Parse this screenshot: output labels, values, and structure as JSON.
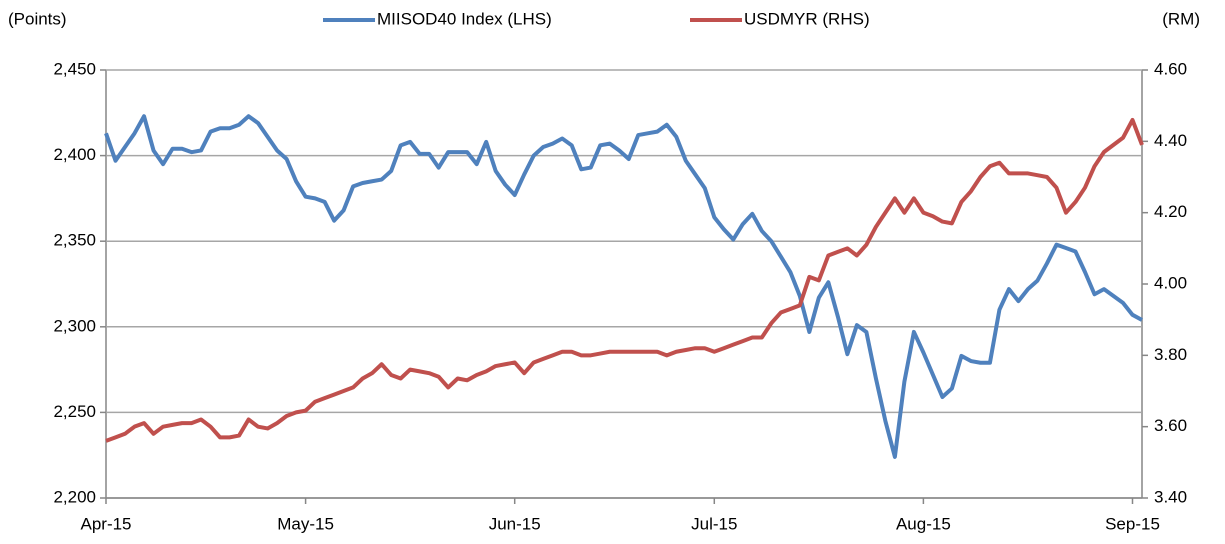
{
  "chart_data": {
    "type": "line",
    "y_label": "(Points)",
    "y2_label": "(RM)",
    "categories": [
      "Apr-15",
      null,
      null,
      null,
      null,
      null,
      null,
      null,
      null,
      null,
      null,
      null,
      null,
      null,
      null,
      null,
      null,
      null,
      null,
      null,
      null,
      "May-15",
      null,
      null,
      null,
      null,
      null,
      null,
      null,
      null,
      null,
      null,
      null,
      null,
      null,
      null,
      null,
      null,
      null,
      null,
      null,
      null,
      null,
      "Jun-15",
      null,
      null,
      null,
      null,
      null,
      null,
      null,
      null,
      null,
      null,
      null,
      null,
      null,
      null,
      null,
      null,
      null,
      null,
      null,
      null,
      "Jul-15",
      null,
      null,
      null,
      null,
      null,
      null,
      null,
      null,
      null,
      null,
      null,
      null,
      null,
      null,
      null,
      null,
      null,
      null,
      null,
      null,
      null,
      "Aug-15",
      null,
      null,
      null,
      null,
      null,
      null,
      null,
      null,
      null,
      null,
      null,
      null,
      null,
      null,
      null,
      null,
      null,
      null,
      null,
      null,
      null,
      "Sep-15",
      null
    ],
    "series": [
      {
        "name": "MIISOD40 Index (LHS)",
        "color": "#4f81bd",
        "axis": "y",
        "values": [
          2413,
          2397,
          2405,
          2413,
          2423,
          2403,
          2395,
          2404,
          2404,
          2402,
          2403,
          2414,
          2416,
          2416,
          2418,
          2423,
          2419,
          2411,
          2403,
          2398,
          2385,
          2376,
          2375,
          2373,
          2362,
          2368,
          2382,
          2384,
          2385,
          2386,
          2391,
          2406,
          2408,
          2401,
          2401,
          2393,
          2402,
          2402,
          2402,
          2395,
          2408,
          2391,
          2383,
          2377,
          2389,
          2400,
          2405,
          2407,
          2410,
          2406,
          2392,
          2393,
          2406,
          2407,
          2403,
          2398,
          2412,
          2413,
          2414,
          2418,
          2411,
          2397,
          2389,
          2381,
          2364,
          2357,
          2351,
          2360,
          2366,
          2356,
          2350,
          2341,
          2332,
          2318,
          2297,
          2317,
          2326,
          2306,
          2284,
          2301,
          2297,
          2270,
          2245,
          2224,
          2268,
          2297,
          2285,
          2272,
          2259,
          2264,
          2283,
          2280,
          2279,
          2279,
          2310,
          2322,
          2315,
          2322,
          2327,
          2337,
          2348,
          2346,
          2344,
          2332,
          2319,
          2322,
          2318,
          2314,
          2307,
          2304
        ]
      },
      {
        "name": "USDMYR (RHS)",
        "color": "#c0504d",
        "axis": "y2",
        "values": [
          3.56,
          3.57,
          3.58,
          3.6,
          3.61,
          3.58,
          3.6,
          3.605,
          3.61,
          3.61,
          3.62,
          3.6,
          3.57,
          3.57,
          3.575,
          3.62,
          3.6,
          3.595,
          3.61,
          3.63,
          3.64,
          3.645,
          3.67,
          3.68,
          3.69,
          3.7,
          3.71,
          3.735,
          3.75,
          3.775,
          3.745,
          3.735,
          3.76,
          3.755,
          3.75,
          3.74,
          3.71,
          3.735,
          3.73,
          3.745,
          3.755,
          3.77,
          3.775,
          3.78,
          3.75,
          3.78,
          3.79,
          3.8,
          3.81,
          3.81,
          3.8,
          3.8,
          3.805,
          3.81,
          3.81,
          3.81,
          3.81,
          3.81,
          3.81,
          3.8,
          3.81,
          3.815,
          3.82,
          3.82,
          3.81,
          3.82,
          3.83,
          3.84,
          3.85,
          3.85,
          3.89,
          3.92,
          3.93,
          3.94,
          4.02,
          4.01,
          4.08,
          4.09,
          4.1,
          4.08,
          4.11,
          4.16,
          4.2,
          4.24,
          4.2,
          4.24,
          4.2,
          4.19,
          4.175,
          4.17,
          4.23,
          4.26,
          4.3,
          4.33,
          4.34,
          4.31,
          4.31,
          4.31,
          4.305,
          4.3,
          4.27,
          4.2,
          4.23,
          4.27,
          4.33,
          4.37,
          4.39,
          4.41,
          4.46,
          4.39
        ]
      }
    ],
    "ylim": [
      2200,
      2450
    ],
    "yticks": [
      {
        "value": 2200,
        "label": "2,200"
      },
      {
        "value": 2250,
        "label": "2,250"
      },
      {
        "value": 2300,
        "label": "2,300"
      },
      {
        "value": 2350,
        "label": "2,350"
      },
      {
        "value": 2400,
        "label": "2,400"
      },
      {
        "value": 2450,
        "label": "2,450"
      }
    ],
    "y2lim": [
      3.4,
      4.6
    ],
    "y2ticks": [
      {
        "value": 3.4,
        "label": "3.40"
      },
      {
        "value": 3.6,
        "label": "3.60"
      },
      {
        "value": 3.8,
        "label": "3.80"
      },
      {
        "value": 4.0,
        "label": "4.00"
      },
      {
        "value": 4.2,
        "label": "4.20"
      },
      {
        "value": 4.4,
        "label": "4.40"
      },
      {
        "value": 4.6,
        "label": "4.60"
      }
    ],
    "grid": true,
    "legend": "top"
  }
}
